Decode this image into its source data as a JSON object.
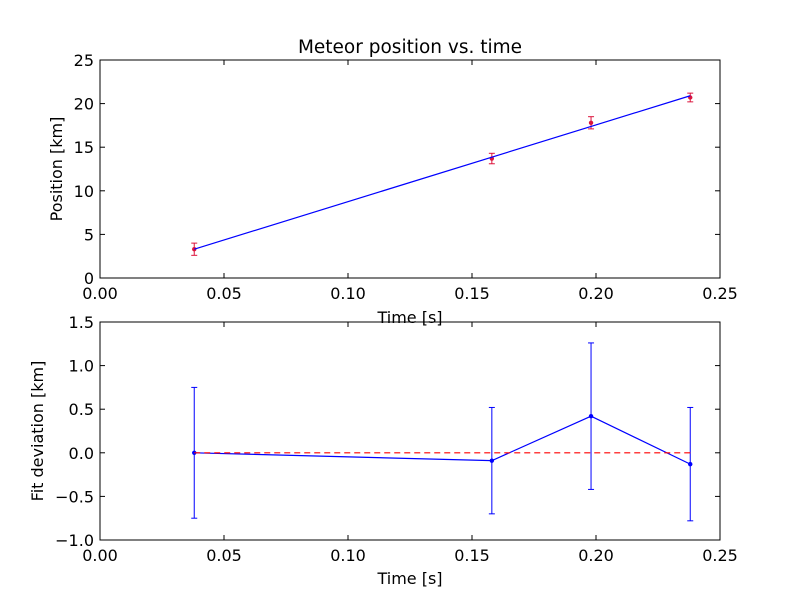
{
  "chart_data": [
    {
      "type": "scatter",
      "title": "Meteor position vs. time",
      "xlabel": "Time [s]",
      "ylabel": "Position [km]",
      "xlim": [
        0,
        0.25
      ],
      "ylim": [
        0,
        25
      ],
      "grid": false,
      "xticks": [
        0.0,
        0.05,
        0.1,
        0.15,
        0.2,
        0.25
      ],
      "xtick_labels": [
        "0.00",
        "0.05",
        "0.10",
        "0.15",
        "0.20",
        "0.25"
      ],
      "yticks": [
        0,
        5,
        10,
        15,
        20,
        25
      ],
      "ytick_labels": [
        "0",
        "5",
        "10",
        "15",
        "20",
        "25"
      ],
      "series": [
        {
          "kind": "errorbar-points",
          "color": "#dc143c",
          "x": [
            0.038,
            0.158,
            0.198,
            0.238
          ],
          "y": [
            3.3,
            13.7,
            17.8,
            20.7
          ],
          "yerr": [
            0.7,
            0.6,
            0.7,
            0.5
          ]
        },
        {
          "kind": "line",
          "color": "#0000ff",
          "x": [
            0.038,
            0.238
          ],
          "y": [
            3.3,
            20.9
          ]
        }
      ]
    },
    {
      "type": "line",
      "title": "",
      "xlabel": "Time [s]",
      "ylabel": "Fit deviation [km]",
      "xlim": [
        0,
        0.25
      ],
      "ylim": [
        -1.0,
        1.5
      ],
      "grid": false,
      "xticks": [
        0.0,
        0.05,
        0.1,
        0.15,
        0.2,
        0.25
      ],
      "xtick_labels": [
        "0.00",
        "0.05",
        "0.10",
        "0.15",
        "0.20",
        "0.25"
      ],
      "yticks": [
        -1.0,
        -0.5,
        0.0,
        0.5,
        1.0,
        1.5
      ],
      "ytick_labels": [
        "−1.0",
        "−0.5",
        "0.0",
        "0.5",
        "1.0",
        "1.5"
      ],
      "series": [
        {
          "kind": "errorbar-line",
          "color": "#0000ff",
          "x": [
            0.038,
            0.158,
            0.198,
            0.238
          ],
          "y": [
            0.0,
            -0.09,
            0.42,
            -0.13
          ],
          "yerr": [
            0.75,
            0.61,
            0.84,
            0.65
          ]
        },
        {
          "kind": "dashed-line",
          "color": "#ff0000",
          "x": [
            0.038,
            0.238
          ],
          "y": [
            0.0,
            0.0
          ]
        }
      ]
    }
  ]
}
